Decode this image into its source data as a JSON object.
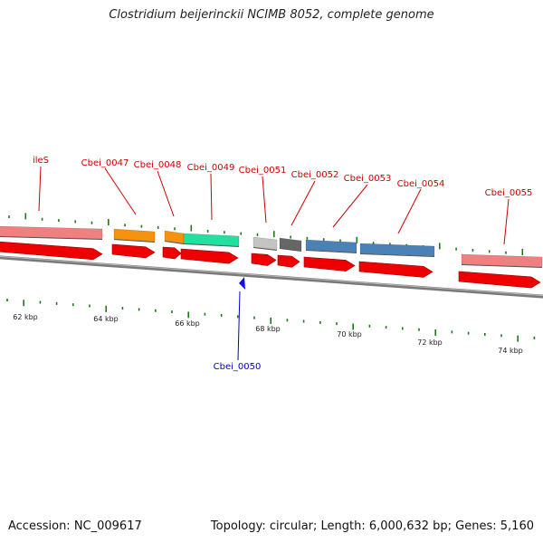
{
  "title": "Clostridium beijerinckii NCIMB 8052, complete genome",
  "footer": {
    "accession": "Accession: NC_009617",
    "topology": "Topology: circular; Length: 6,000,632 bp; Genes: 5,160"
  },
  "colors": {
    "backbone": "#7a7a7a",
    "cds": "#ee0000",
    "ticks": "#1a7a1a",
    "label_red": "#cc0000",
    "label_blue": "#0000cc"
  },
  "kbp_labels": [
    "62 kbp",
    "64 kbp",
    "66 kbp",
    "68 kbp",
    "70 kbp",
    "72 kbp",
    "74 kbp"
  ],
  "genes": [
    {
      "label": "ileS",
      "color": "#f08080"
    },
    {
      "label": "Cbei_0047",
      "color": "#f5920e"
    },
    {
      "label": "Cbei_0048",
      "color": "#f5920e"
    },
    {
      "label": "Cbei_0049",
      "color": "#22e0a0"
    },
    {
      "label": "Cbei_0050",
      "color": "#1010ee"
    },
    {
      "label": "Cbei_0051",
      "color": "#c4c4c4"
    },
    {
      "label": "Cbei_0052",
      "color": "#666666"
    },
    {
      "label": "Cbei_0053",
      "color": "#4a82b8"
    },
    {
      "label": "Cbei_0054",
      "color": "#4a82b8"
    },
    {
      "label": "Cbei_0055",
      "color": "#f08080"
    }
  ]
}
